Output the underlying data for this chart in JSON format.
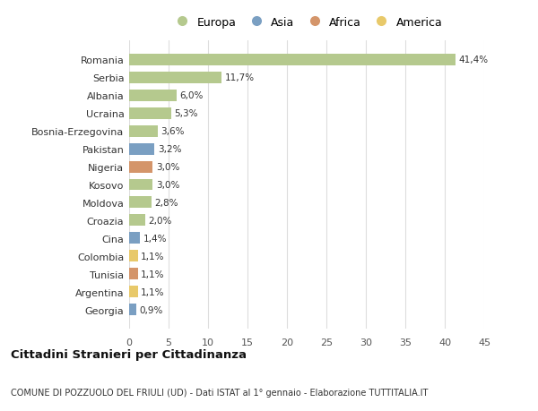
{
  "countries": [
    "Romania",
    "Serbia",
    "Albania",
    "Ucraina",
    "Bosnia-Erzegovina",
    "Pakistan",
    "Nigeria",
    "Kosovo",
    "Moldova",
    "Croazia",
    "Cina",
    "Colombia",
    "Tunisia",
    "Argentina",
    "Georgia"
  ],
  "values": [
    41.4,
    11.7,
    6.0,
    5.3,
    3.6,
    3.2,
    3.0,
    3.0,
    2.8,
    2.0,
    1.4,
    1.1,
    1.1,
    1.1,
    0.9
  ],
  "labels": [
    "41,4%",
    "11,7%",
    "6,0%",
    "5,3%",
    "3,6%",
    "3,2%",
    "3,0%",
    "3,0%",
    "2,8%",
    "2,0%",
    "1,4%",
    "1,1%",
    "1,1%",
    "1,1%",
    "0,9%"
  ],
  "continents": [
    "Europa",
    "Europa",
    "Europa",
    "Europa",
    "Europa",
    "Asia",
    "Africa",
    "Europa",
    "Europa",
    "Europa",
    "Asia",
    "America",
    "Africa",
    "America",
    "Asia"
  ],
  "colors": {
    "Europa": "#b5c98e",
    "Asia": "#7a9fc2",
    "Africa": "#d4956a",
    "America": "#e8c96a"
  },
  "xlim": [
    0,
    45
  ],
  "xticks": [
    0,
    5,
    10,
    15,
    20,
    25,
    30,
    35,
    40,
    45
  ],
  "title": "Cittadini Stranieri per Cittadinanza",
  "subtitle": "COMUNE DI POZZUOLO DEL FRIULI (UD) - Dati ISTAT al 1° gennaio - Elaborazione TUTTITALIA.IT",
  "background_color": "#ffffff",
  "grid_color": "#dddddd",
  "legend_order": [
    "Europa",
    "Asia",
    "Africa",
    "America"
  ],
  "legend_colors": [
    "#b5c98e",
    "#7a9fc2",
    "#d4956a",
    "#e8c96a"
  ]
}
